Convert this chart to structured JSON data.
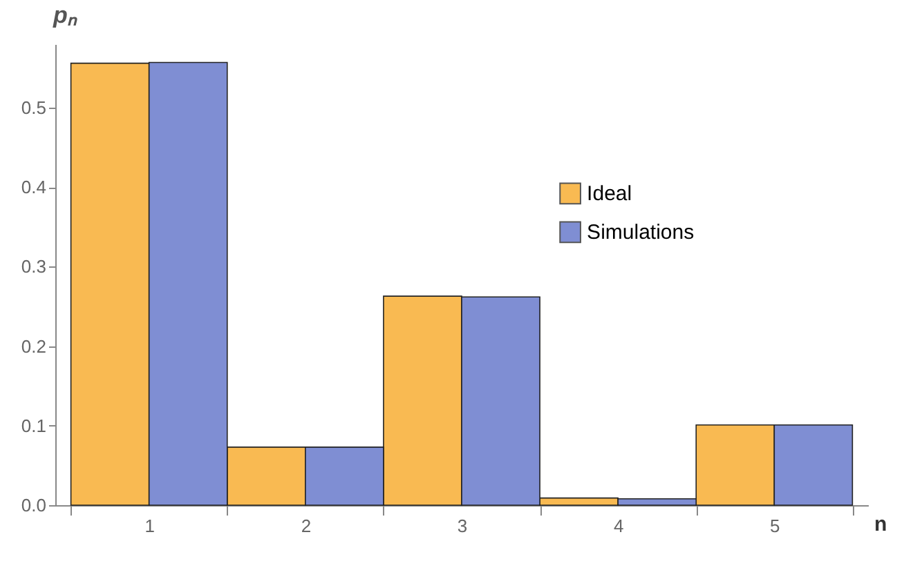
{
  "chart_data": {
    "type": "bar",
    "xlabel": "n",
    "ylabel": "pₙ",
    "categories": [
      "1",
      "2",
      "3",
      "4",
      "5"
    ],
    "series": [
      {
        "name": "Ideal",
        "color": "#f9ba52",
        "values": [
          0.556,
          0.073,
          0.263,
          0.009,
          0.101
        ]
      },
      {
        "name": "Simulations",
        "color": "#7f8ed3",
        "values": [
          0.557,
          0.073,
          0.262,
          0.008,
          0.101
        ]
      }
    ],
    "ylim": [
      0,
      0.58
    ],
    "yticks": [
      {
        "value": 0,
        "label": "0.0"
      },
      0.1,
      0.2,
      0.3,
      0.4,
      0.5
    ],
    "grid": false,
    "legend": "right"
  }
}
